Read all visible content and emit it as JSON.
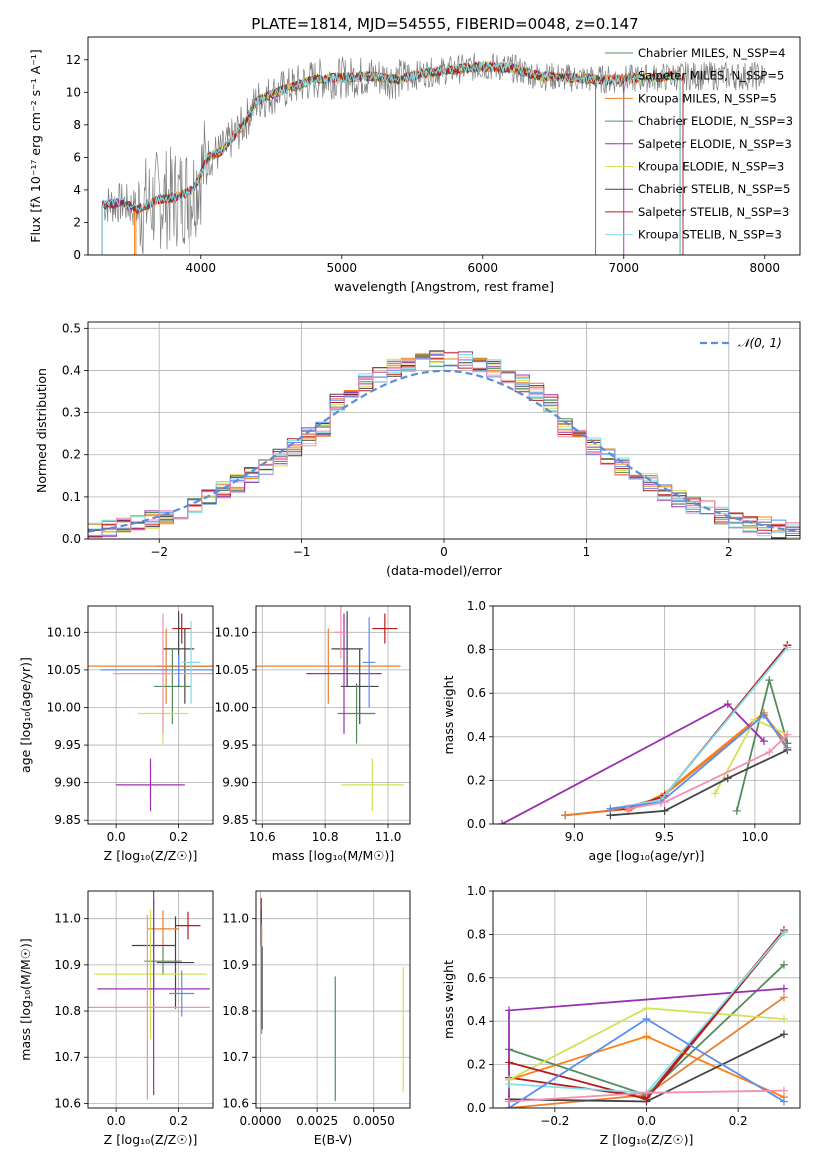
{
  "figure_title": "PLATE=1814, MJD=54555, FIBERID=0048, z=0.147",
  "series_colors": [
    "#808080",
    "#ff7f0e",
    "#e8802f",
    "#558b5c",
    "#9b30b0",
    "#d4e157",
    "#444444",
    "#b71c1c",
    "#80deea",
    "#5b8def",
    "#f48fb1"
  ],
  "chart_data": [
    {
      "id": "spectrum",
      "type": "line",
      "title": "PLATE=1814, MJD=54555, FIBERID=0048, z=0.147",
      "xlabel": "wavelength [Angstrom, rest frame]",
      "ylabel": "Flux [fλ 10⁻¹⁷ erg cm⁻² s⁻¹ A⁻¹]",
      "xlim": [
        3200,
        8250
      ],
      "ylim": [
        0,
        13.4
      ],
      "xticks": [
        "4000",
        "5000",
        "6000",
        "7000",
        "8000"
      ],
      "yticks": [
        "0",
        "2",
        "4",
        "6",
        "8",
        "10",
        "12"
      ],
      "grid": false,
      "legend_position": "right",
      "continuum": {
        "x": [
          3300,
          3450,
          3550,
          3700,
          3850,
          3950,
          4050,
          4150,
          4300,
          4400,
          4600,
          4800,
          5000,
          5200,
          5400,
          5600,
          5800,
          6000,
          6200,
          6400,
          6600,
          6800,
          7000,
          7200,
          7400
        ],
        "y": [
          3.1,
          3.2,
          2.8,
          3.4,
          3.6,
          4.0,
          6.0,
          6.4,
          8.0,
          9.5,
          10.2,
          10.8,
          10.9,
          11.0,
          10.8,
          11.2,
          11.4,
          11.6,
          11.5,
          11.0,
          10.9,
          10.8,
          10.8,
          10.9,
          11.0
        ]
      },
      "series": [
        {
          "name": "Chabrier MILES, N_SSP=4"
        },
        {
          "name": "Salpeter MILES, N_SSP=5"
        },
        {
          "name": "Kroupa MILES, N_SSP=5"
        },
        {
          "name": "Chabrier ELODIE, N_SSP=3"
        },
        {
          "name": "Salpeter ELODIE, N_SSP=3"
        },
        {
          "name": "Kroupa ELODIE, N_SSP=3"
        },
        {
          "name": "Chabrier STELIB, N_SSP=5"
        },
        {
          "name": "Salpeter STELIB, N_SSP=3"
        },
        {
          "name": "Kroupa STELIB, N_SSP=3"
        }
      ]
    },
    {
      "id": "residuals",
      "type": "line",
      "xlabel": "(data-model)/error",
      "ylabel": "Normed distribution",
      "xlim": [
        -2.5,
        2.5
      ],
      "ylim": [
        0,
        0.515
      ],
      "xticks": [
        "−2",
        "−1",
        "0",
        "1",
        "2"
      ],
      "yticks": [
        "0.0",
        "0.1",
        "0.2",
        "0.3",
        "0.4",
        "0.5"
      ],
      "grid": true,
      "legend_position": "top-right",
      "reference": {
        "name": "𝒩(0, 1)"
      }
    },
    {
      "id": "age-vs-Z",
      "type": "scatter",
      "xlabel": "Z [log₁₀(Z/Z☉)]",
      "ylabel": "age [log₁₀(age/yr)]",
      "xlim": [
        -0.09,
        0.31
      ],
      "ylim": [
        9.845,
        10.135
      ],
      "xticks": [
        "0.0",
        "0.2"
      ],
      "yticks": [
        "9.85",
        "9.90",
        "9.95",
        "10.00",
        "10.05",
        "10.10"
      ],
      "grid": true,
      "points": [
        {
          "x": 0.21,
          "y": 10.105,
          "xerr": 0.03,
          "yerr": 0.02
        },
        {
          "x": 0.22,
          "y": 10.055,
          "xerr": 0.09,
          "yerr": 0.05
        },
        {
          "x": 0.16,
          "y": 10.055,
          "xerr": 0.27,
          "yerr": 0.05
        },
        {
          "x": 0.2,
          "y": 10.078,
          "xerr": 0.05,
          "yerr": 0.05
        },
        {
          "x": 0.18,
          "y": 10.028,
          "xerr": 0.06,
          "yerr": 0.05
        },
        {
          "x": 0.15,
          "y": 9.992,
          "xerr": 0.08,
          "yerr": 0.04
        },
        {
          "x": 0.11,
          "y": 9.897,
          "xerr": 0.11,
          "yerr": 0.035
        },
        {
          "x": 0.15,
          "y": 10.045,
          "xerr": 0.16,
          "yerr": 0.08
        },
        {
          "x": 0.2,
          "y": 10.05,
          "xerr": 0.25,
          "yerr": 0.02
        },
        {
          "x": 0.24,
          "y": 10.06,
          "xerr": 0.03,
          "yerr": 0.055
        }
      ]
    },
    {
      "id": "age-vs-mass",
      "type": "scatter",
      "xlabel": "mass [log₁₀(M/M☉)]",
      "xlim": [
        10.58,
        11.07
      ],
      "ylim": [
        9.845,
        10.135
      ],
      "xticks": [
        "10.6",
        "10.8",
        "11.0"
      ],
      "yticks": [
        "9.85",
        "9.90",
        "9.95",
        "10.00",
        "10.05",
        "10.10"
      ],
      "grid": true,
      "points": [
        {
          "x": 10.99,
          "y": 10.105,
          "xerr": 0.04,
          "yerr": 0.02
        },
        {
          "x": 10.87,
          "y": 10.078,
          "xerr": 0.05,
          "yerr": 0.05
        },
        {
          "x": 10.81,
          "y": 10.055,
          "xerr": 0.23,
          "yerr": 0.05
        },
        {
          "x": 10.91,
          "y": 10.028,
          "xerr": 0.06,
          "yerr": 0.05
        },
        {
          "x": 10.9,
          "y": 9.992,
          "xerr": 0.06,
          "yerr": 0.04
        },
        {
          "x": 10.95,
          "y": 9.897,
          "xerr": 0.1,
          "yerr": 0.035
        },
        {
          "x": 10.86,
          "y": 10.045,
          "xerr": 0.12,
          "yerr": 0.08
        },
        {
          "x": 10.85,
          "y": 10.1,
          "xerr": 0.02,
          "yerr": 0.035
        },
        {
          "x": 10.94,
          "y": 10.06,
          "xerr": 0.02,
          "yerr": 0.06
        }
      ]
    },
    {
      "id": "weight-vs-age",
      "type": "line",
      "xlabel": "age [log₁₀(age/yr)]",
      "ylabel": "mass weight",
      "xlim": [
        8.55,
        10.25
      ],
      "ylim": [
        0,
        1.0
      ],
      "xticks": [
        "9.0",
        "9.5",
        "10.0"
      ],
      "yticks": [
        "0.0",
        "0.2",
        "0.4",
        "0.6",
        "0.8",
        "1.0"
      ],
      "grid": true,
      "series": [
        {
          "x": [
            8.95,
            9.3,
            9.5,
            10.18
          ],
          "y": [
            0.04,
            0.07,
            0.13,
            0.82
          ]
        },
        {
          "x": [
            9.3,
            9.5,
            10.05,
            10.18
          ],
          "y": [
            0.06,
            0.14,
            0.51,
            0.34
          ]
        },
        {
          "x": [
            8.95,
            9.2,
            9.48,
            10.05,
            10.18
          ],
          "y": [
            0.04,
            0.06,
            0.12,
            0.5,
            0.37
          ]
        },
        {
          "x": [
            9.9,
            10.08,
            10.18
          ],
          "y": [
            0.06,
            0.66,
            0.37
          ]
        },
        {
          "x": [
            8.6,
            9.85,
            10.05
          ],
          "y": [
            0.0,
            0.55,
            0.38
          ]
        },
        {
          "x": [
            9.78,
            10.0,
            10.18
          ],
          "y": [
            0.14,
            0.48,
            0.41
          ]
        },
        {
          "x": [
            9.2,
            9.5,
            9.85,
            10.18
          ],
          "y": [
            0.04,
            0.06,
            0.21,
            0.34
          ]
        },
        {
          "x": [
            9.3,
            9.5,
            10.18
          ],
          "y": [
            0.07,
            0.13,
            0.82
          ]
        },
        {
          "x": [
            9.2,
            9.48,
            10.18
          ],
          "y": [
            0.07,
            0.11,
            0.81
          ]
        },
        {
          "x": [
            9.2,
            9.48,
            10.05,
            10.18
          ],
          "y": [
            0.07,
            0.1,
            0.5,
            0.35
          ]
        },
        {
          "x": [
            9.3,
            9.5,
            10.08,
            10.18
          ],
          "y": [
            0.07,
            0.1,
            0.33,
            0.41
          ]
        }
      ]
    },
    {
      "id": "mass-vs-Z",
      "type": "scatter",
      "xlabel": "Z [log₁₀(Z/Z☉)]",
      "ylabel": "mass [log₁₀(M/M☉)]",
      "xlim": [
        -0.09,
        0.31
      ],
      "ylim": [
        10.59,
        11.06
      ],
      "xticks": [
        "0.0",
        "0.2"
      ],
      "yticks": [
        "10.6",
        "10.7",
        "10.8",
        "10.9",
        "11.0"
      ],
      "grid": true,
      "points": [
        {
          "x": 0.23,
          "y": 10.985,
          "xerr": 0.04,
          "yerr": 0.03
        },
        {
          "x": 0.19,
          "y": 10.905,
          "xerr": 0.06,
          "yerr": 0.1
        },
        {
          "x": 0.15,
          "y": 10.978,
          "xerr": 0.05,
          "yerr": 0.04
        },
        {
          "x": 0.12,
          "y": 10.942,
          "xerr": 0.07,
          "yerr": 0.1
        },
        {
          "x": 0.15,
          "y": 10.908,
          "xerr": 0.06,
          "yerr": 0.03
        },
        {
          "x": 0.11,
          "y": 10.88,
          "xerr": 0.18,
          "yerr": 0.14
        },
        {
          "x": 0.12,
          "y": 10.848,
          "xerr": 0.18,
          "yerr": 0.23
        },
        {
          "x": 0.1,
          "y": 10.808,
          "xerr": 0.2,
          "yerr": 0.2
        },
        {
          "x": 0.21,
          "y": 10.838,
          "xerr": 0.04,
          "yerr": 0.05
        }
      ]
    },
    {
      "id": "mass-vs-EBV",
      "type": "scatter",
      "xlabel": "E(B-V)",
      "xlim": [
        -0.0002,
        0.0066
      ],
      "ylim": [
        10.59,
        11.06
      ],
      "xticks": [
        "0.0000",
        "0.0025",
        "0.0050"
      ],
      "yticks": [
        "10.6",
        "10.7",
        "10.8",
        "10.9",
        "11.0"
      ],
      "grid": true,
      "points": [
        {
          "x": 3e-05,
          "y": 11.0,
          "yerr": 0.045
        },
        {
          "x": 3e-05,
          "y": 10.98,
          "yerr": 0.04
        },
        {
          "x": 5e-05,
          "y": 10.87,
          "yerr": 0.12
        },
        {
          "x": 7e-05,
          "y": 10.85,
          "yerr": 0.09
        },
        {
          "x": 0.0033,
          "y": 10.74,
          "yerr": 0.135
        },
        {
          "x": 0.0063,
          "y": 10.76,
          "yerr": 0.135
        }
      ]
    },
    {
      "id": "weight-vs-Z",
      "type": "line",
      "xlabel": "Z [log₁₀(Z/Z☉)]",
      "ylabel": "mass weight",
      "xlim": [
        -0.335,
        0.335
      ],
      "ylim": [
        0,
        1.0
      ],
      "xticks": [
        "−0.2",
        "0.0",
        "0.2"
      ],
      "yticks": [
        "0.0",
        "0.2",
        "0.4",
        "0.6",
        "0.8",
        "1.0"
      ],
      "grid": true,
      "series": [
        {
          "x": [
            -0.3,
            0.0,
            0.3
          ],
          "y": [
            0.14,
            0.05,
            0.82
          ]
        },
        {
          "x": [
            -0.3,
            0.0,
            0.3
          ],
          "y": [
            0.13,
            0.33,
            0.05
          ]
        },
        {
          "x": [
            -0.3,
            0.0,
            0.3
          ],
          "y": [
            0.0,
            0.06,
            0.51
          ]
        },
        {
          "x": [
            -0.3,
            0.0,
            0.3
          ],
          "y": [
            0.27,
            0.06,
            0.66
          ]
        },
        {
          "x": [
            -0.3,
            -0.3,
            0.3
          ],
          "y": [
            0.0,
            0.45,
            0.55
          ]
        },
        {
          "x": [
            -0.3,
            0.0,
            0.3
          ],
          "y": [
            0.13,
            0.46,
            0.41
          ]
        },
        {
          "x": [
            -0.3,
            0.0,
            0.3
          ],
          "y": [
            0.04,
            0.03,
            0.34
          ]
        },
        {
          "x": [
            -0.3,
            0.0,
            0.3
          ],
          "y": [
            0.21,
            0.04,
            0.81
          ]
        },
        {
          "x": [
            -0.3,
            0.0,
            0.3
          ],
          "y": [
            0.11,
            0.07,
            0.81
          ]
        },
        {
          "x": [
            -0.3,
            0.0,
            0.3
          ],
          "y": [
            0.0,
            0.41,
            0.03
          ]
        },
        {
          "x": [
            -0.3,
            0.0,
            0.3
          ],
          "y": [
            0.03,
            0.07,
            0.08
          ]
        }
      ]
    }
  ]
}
